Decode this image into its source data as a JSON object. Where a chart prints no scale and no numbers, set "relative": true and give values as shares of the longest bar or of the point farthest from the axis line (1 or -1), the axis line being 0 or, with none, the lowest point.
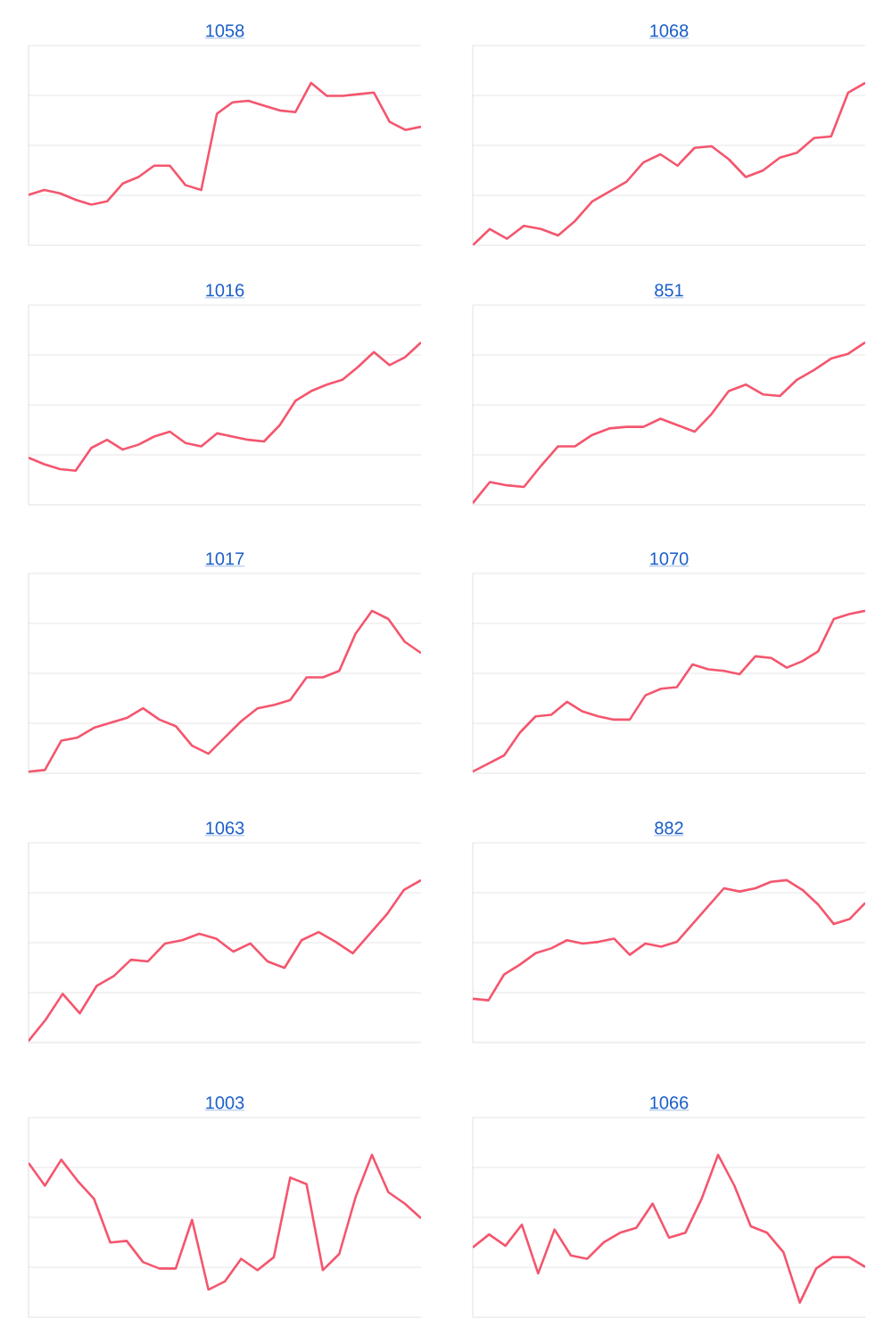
{
  "chart_data": [
    {
      "type": "line",
      "title": "1058",
      "relative": true,
      "grid": true,
      "tick_labels": false,
      "color": "#f4566e",
      "categories": [
        null,
        null,
        null,
        null,
        null,
        null,
        null,
        null,
        null,
        null,
        null,
        null,
        null,
        null,
        null,
        null,
        null,
        null,
        null,
        null,
        null,
        null,
        null,
        null,
        null,
        null
      ],
      "values": [
        0.31,
        0.34,
        0.32,
        0.28,
        0.25,
        0.27,
        0.38,
        0.42,
        0.49,
        0.49,
        0.37,
        0.34,
        0.81,
        0.88,
        0.89,
        0.86,
        0.83,
        0.82,
        1.0,
        0.92,
        0.92,
        0.93,
        0.94,
        0.76,
        0.71,
        0.73
      ]
    },
    {
      "type": "line",
      "title": "1068",
      "relative": true,
      "grid": true,
      "tick_labels": false,
      "color": "#f4566e",
      "categories": [
        null,
        null,
        null,
        null,
        null,
        null,
        null,
        null,
        null,
        null,
        null,
        null,
        null,
        null,
        null,
        null,
        null,
        null,
        null,
        null,
        null,
        null,
        null,
        null
      ],
      "values": [
        0.0,
        0.1,
        0.04,
        0.12,
        0.1,
        0.06,
        0.15,
        0.27,
        0.33,
        0.39,
        0.51,
        0.56,
        0.49,
        0.6,
        0.61,
        0.53,
        0.42,
        0.46,
        0.54,
        0.57,
        0.66,
        0.67,
        0.94,
        1.0
      ]
    },
    {
      "type": "line",
      "title": "1016",
      "relative": true,
      "grid": true,
      "tick_labels": false,
      "color": "#f4566e",
      "categories": [
        null,
        null,
        null,
        null,
        null,
        null,
        null,
        null,
        null,
        null,
        null,
        null,
        null,
        null,
        null,
        null,
        null,
        null,
        null,
        null,
        null,
        null,
        null,
        null,
        null,
        null
      ],
      "values": [
        0.29,
        0.25,
        0.22,
        0.21,
        0.35,
        0.4,
        0.34,
        0.37,
        0.42,
        0.45,
        0.38,
        0.36,
        0.44,
        0.42,
        0.4,
        0.39,
        0.49,
        0.64,
        0.7,
        0.74,
        0.77,
        0.85,
        0.94,
        0.86,
        0.91,
        1.0
      ]
    },
    {
      "type": "line",
      "title": "851",
      "relative": true,
      "grid": true,
      "tick_labels": false,
      "color": "#f4566e",
      "categories": [
        null,
        null,
        null,
        null,
        null,
        null,
        null,
        null,
        null,
        null,
        null,
        null,
        null,
        null,
        null,
        null,
        null,
        null,
        null,
        null,
        null,
        null,
        null,
        null
      ],
      "values": [
        0.01,
        0.14,
        0.12,
        0.11,
        0.24,
        0.36,
        0.36,
        0.43,
        0.47,
        0.48,
        0.48,
        0.53,
        0.49,
        0.45,
        0.56,
        0.7,
        0.74,
        0.68,
        0.67,
        0.77,
        0.83,
        0.9,
        0.93,
        1.0
      ]
    },
    {
      "type": "line",
      "title": "1017",
      "relative": true,
      "grid": true,
      "tick_labels": false,
      "color": "#f4566e",
      "categories": [
        null,
        null,
        null,
        null,
        null,
        null,
        null,
        null,
        null,
        null,
        null,
        null,
        null,
        null,
        null,
        null,
        null,
        null,
        null,
        null,
        null,
        null,
        null,
        null,
        null
      ],
      "values": [
        0.01,
        0.02,
        0.2,
        0.22,
        0.28,
        0.31,
        0.34,
        0.4,
        0.33,
        0.29,
        0.17,
        0.12,
        0.22,
        0.32,
        0.4,
        0.42,
        0.45,
        0.59,
        0.59,
        0.63,
        0.86,
        1.0,
        0.95,
        0.81,
        0.74
      ]
    },
    {
      "type": "line",
      "title": "1070",
      "relative": true,
      "grid": true,
      "tick_labels": false,
      "color": "#f4566e",
      "categories": [
        null,
        null,
        null,
        null,
        null,
        null,
        null,
        null,
        null,
        null,
        null,
        null,
        null,
        null,
        null,
        null,
        null,
        null,
        null,
        null,
        null,
        null,
        null,
        null,
        null,
        null
      ],
      "values": [
        0.01,
        0.06,
        0.11,
        0.25,
        0.35,
        0.36,
        0.44,
        0.38,
        0.35,
        0.33,
        0.33,
        0.48,
        0.52,
        0.53,
        0.67,
        0.64,
        0.63,
        0.61,
        0.72,
        0.71,
        0.65,
        0.69,
        0.75,
        0.95,
        0.98,
        1.0
      ]
    },
    {
      "type": "line",
      "title": "1063",
      "relative": true,
      "grid": true,
      "tick_labels": false,
      "color": "#f4566e",
      "categories": [
        null,
        null,
        null,
        null,
        null,
        null,
        null,
        null,
        null,
        null,
        null,
        null,
        null,
        null,
        null,
        null,
        null,
        null,
        null,
        null,
        null,
        null,
        null,
        null
      ],
      "values": [
        0.01,
        0.14,
        0.3,
        0.18,
        0.35,
        0.41,
        0.51,
        0.5,
        0.61,
        0.63,
        0.67,
        0.64,
        0.56,
        0.61,
        0.5,
        0.46,
        0.63,
        0.68,
        0.62,
        0.55,
        0.67,
        0.79,
        0.94,
        1.0
      ]
    },
    {
      "type": "line",
      "title": "882",
      "relative": true,
      "grid": true,
      "tick_labels": false,
      "color": "#f4566e",
      "categories": [
        null,
        null,
        null,
        null,
        null,
        null,
        null,
        null,
        null,
        null,
        null,
        null,
        null,
        null,
        null,
        null,
        null,
        null,
        null,
        null,
        null,
        null,
        null,
        null,
        null,
        null
      ],
      "values": [
        0.27,
        0.26,
        0.42,
        0.48,
        0.55,
        0.58,
        0.63,
        0.61,
        0.62,
        0.64,
        0.54,
        0.61,
        0.59,
        0.62,
        0.73,
        0.84,
        0.95,
        0.93,
        0.95,
        0.99,
        1.0,
        0.94,
        0.85,
        0.73,
        0.76,
        0.86
      ]
    },
    {
      "type": "line",
      "title": "1003",
      "relative": true,
      "grid": true,
      "tick_labels": false,
      "color": "#f4566e",
      "categories": [
        null,
        null,
        null,
        null,
        null,
        null,
        null,
        null,
        null,
        null,
        null,
        null,
        null,
        null,
        null,
        null,
        null,
        null,
        null,
        null,
        null,
        null,
        null,
        null,
        null
      ],
      "values": [
        0.95,
        0.81,
        0.97,
        0.84,
        0.73,
        0.46,
        0.47,
        0.34,
        0.3,
        0.3,
        0.6,
        0.17,
        0.22,
        0.36,
        0.29,
        0.37,
        0.86,
        0.82,
        0.29,
        0.39,
        0.74,
        1.0,
        0.77,
        0.7,
        0.61
      ]
    },
    {
      "type": "line",
      "title": "1066",
      "relative": true,
      "grid": true,
      "tick_labels": false,
      "color": "#f4566e",
      "categories": [
        null,
        null,
        null,
        null,
        null,
        null,
        null,
        null,
        null,
        null,
        null,
        null,
        null,
        null,
        null,
        null,
        null,
        null,
        null,
        null,
        null,
        null,
        null,
        null,
        null
      ],
      "values": [
        0.43,
        0.51,
        0.44,
        0.57,
        0.27,
        0.54,
        0.38,
        0.36,
        0.46,
        0.52,
        0.55,
        0.7,
        0.49,
        0.52,
        0.73,
        1.0,
        0.81,
        0.56,
        0.52,
        0.4,
        0.09,
        0.3,
        0.37,
        0.37,
        0.31
      ]
    }
  ]
}
